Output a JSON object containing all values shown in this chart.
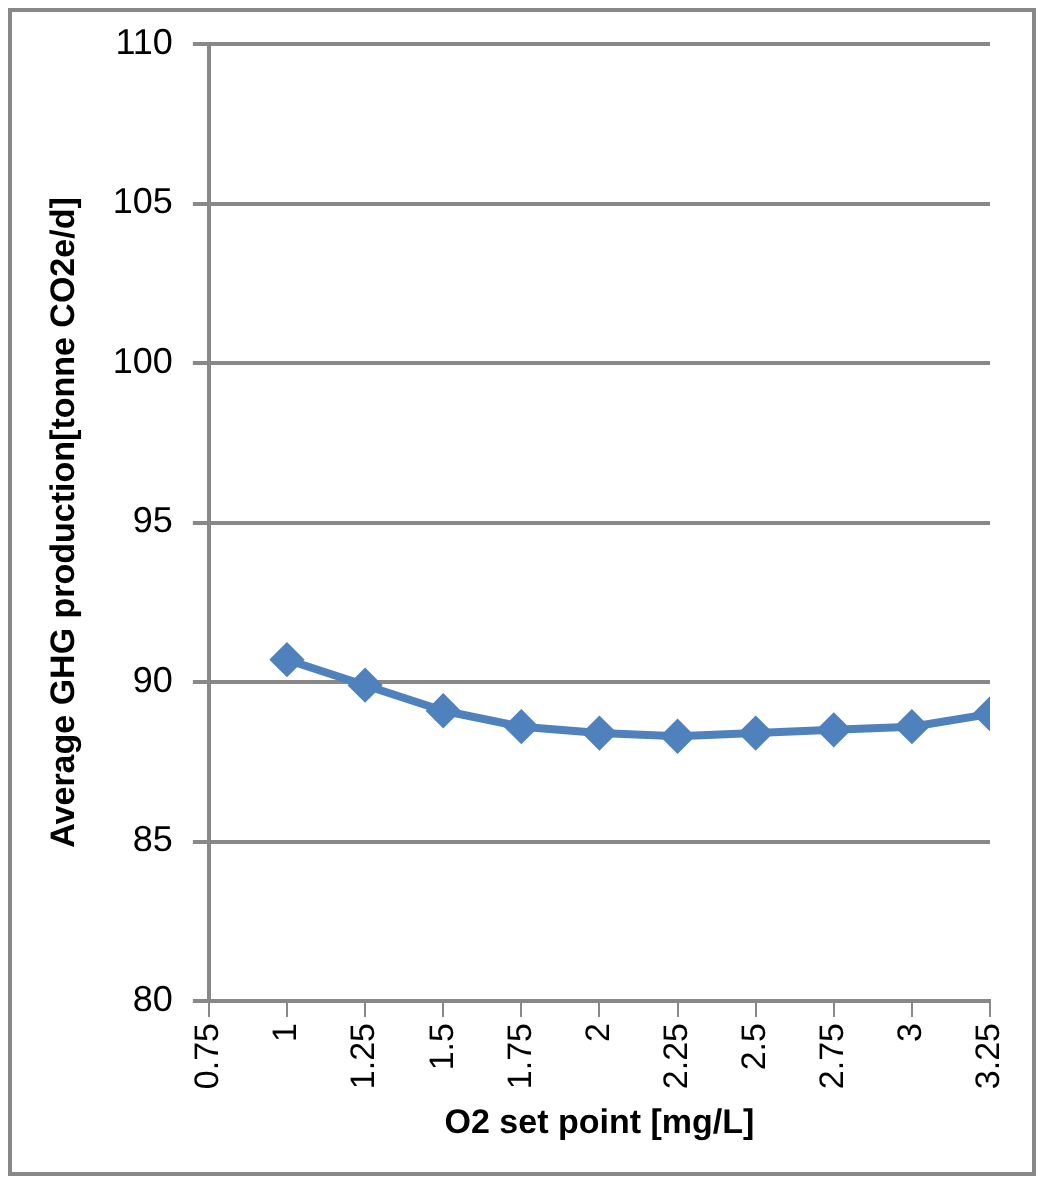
{
  "chart_data": {
    "type": "line",
    "xlabel": "O2 set point [mg/L]",
    "ylabel": "Average GHG production[tonne CO2e/d]",
    "x": [
      1,
      1.25,
      1.5,
      1.75,
      2,
      2.25,
      2.5,
      2.75,
      3,
      3.25
    ],
    "series": [
      {
        "color": "#4f81bd",
        "values": [
          90.7,
          89.9,
          89.1,
          88.6,
          88.4,
          88.3,
          88.4,
          88.5,
          88.6,
          89.0
        ]
      }
    ],
    "xlim": [
      0.75,
      3.25
    ],
    "xticks": [
      0.75,
      1,
      1.25,
      1.5,
      1.75,
      2,
      2.25,
      2.5,
      2.75,
      3,
      3.25
    ],
    "ylim": [
      80,
      110
    ],
    "yticks": [
      80,
      85,
      90,
      95,
      100,
      105,
      110
    ],
    "grid": "y",
    "legend": false,
    "marker": "diamond",
    "line_style": "solid"
  }
}
